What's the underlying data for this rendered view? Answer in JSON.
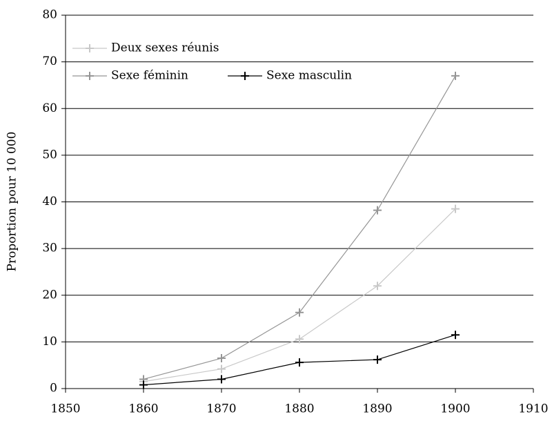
{
  "chart_data": {
    "type": "line",
    "y_label": "Proportion pour 10 000",
    "x": [
      1860,
      1870,
      1880,
      1890,
      1900
    ],
    "series": [
      {
        "name": "Deux sexes réunis",
        "color": "#c8c8c8",
        "values": [
          1.5,
          4.2,
          10.6,
          22,
          38.5
        ]
      },
      {
        "name": "Sexe féminin",
        "color": "#959595",
        "values": [
          2,
          6.5,
          16.3,
          38.2,
          67
        ]
      },
      {
        "name": "Sexe masculin",
        "color": "#000000",
        "values": [
          0.8,
          2,
          5.6,
          6.2,
          11.5
        ]
      }
    ],
    "xlim": [
      1850,
      1910
    ],
    "xticks": [
      1850,
      1860,
      1870,
      1880,
      1890,
      1900,
      1910
    ],
    "ylim": [
      0,
      80
    ],
    "yticks": [
      0,
      10,
      20,
      30,
      40,
      50,
      60,
      70,
      80
    ],
    "grid": true,
    "legend": "upper left",
    "marker": "plus"
  }
}
